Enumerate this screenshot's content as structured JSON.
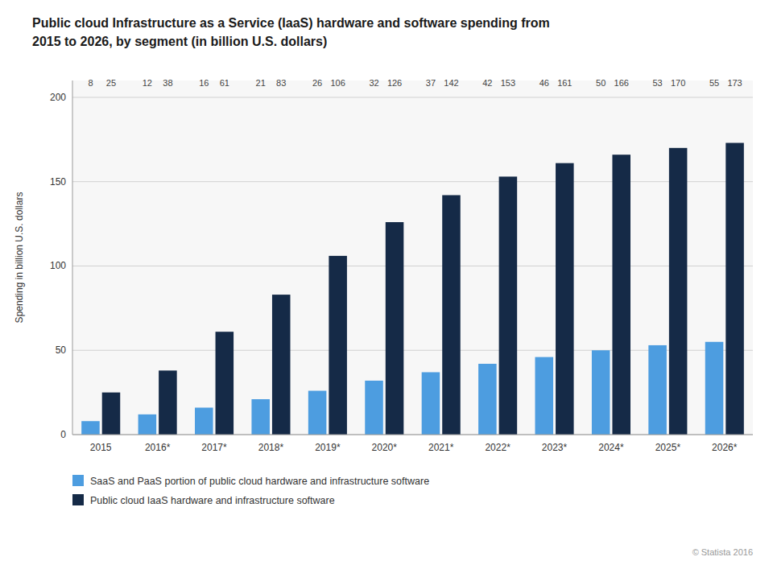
{
  "chart_data": {
    "type": "bar",
    "title": "Public cloud Infrastructure as a Service (IaaS) hardware and software spending from",
    "subtitle": "2015 to 2026, by segment (in billion U.S. dollars)",
    "y_label": "Spending in billion U.S. dollars",
    "categories": [
      "2015",
      "2016*",
      "2017*",
      "2018*",
      "2019*",
      "2020*",
      "2021*",
      "2022*",
      "2023*",
      "2024*",
      "2025*",
      "2026*"
    ],
    "series": [
      {
        "name": "SaaS and PaaS portion of public cloud hardware and infrastructure software",
        "color": "#4d9de0",
        "values": [
          8,
          12,
          16,
          21,
          26,
          32,
          37,
          42,
          46,
          50,
          53,
          55
        ]
      },
      {
        "name": "Public cloud IaaS hardware and infrastructure software",
        "color": "#152a47",
        "values": [
          25,
          38,
          61,
          83,
          106,
          126,
          142,
          153,
          161,
          166,
          170,
          173
        ]
      }
    ],
    "ylim": [
      0,
      210
    ],
    "yticks": [
      0,
      50,
      100,
      150,
      200
    ],
    "grid": true,
    "data_labels": true,
    "legend": "bottom",
    "annotations": [
      "© Statista 2016"
    ]
  }
}
